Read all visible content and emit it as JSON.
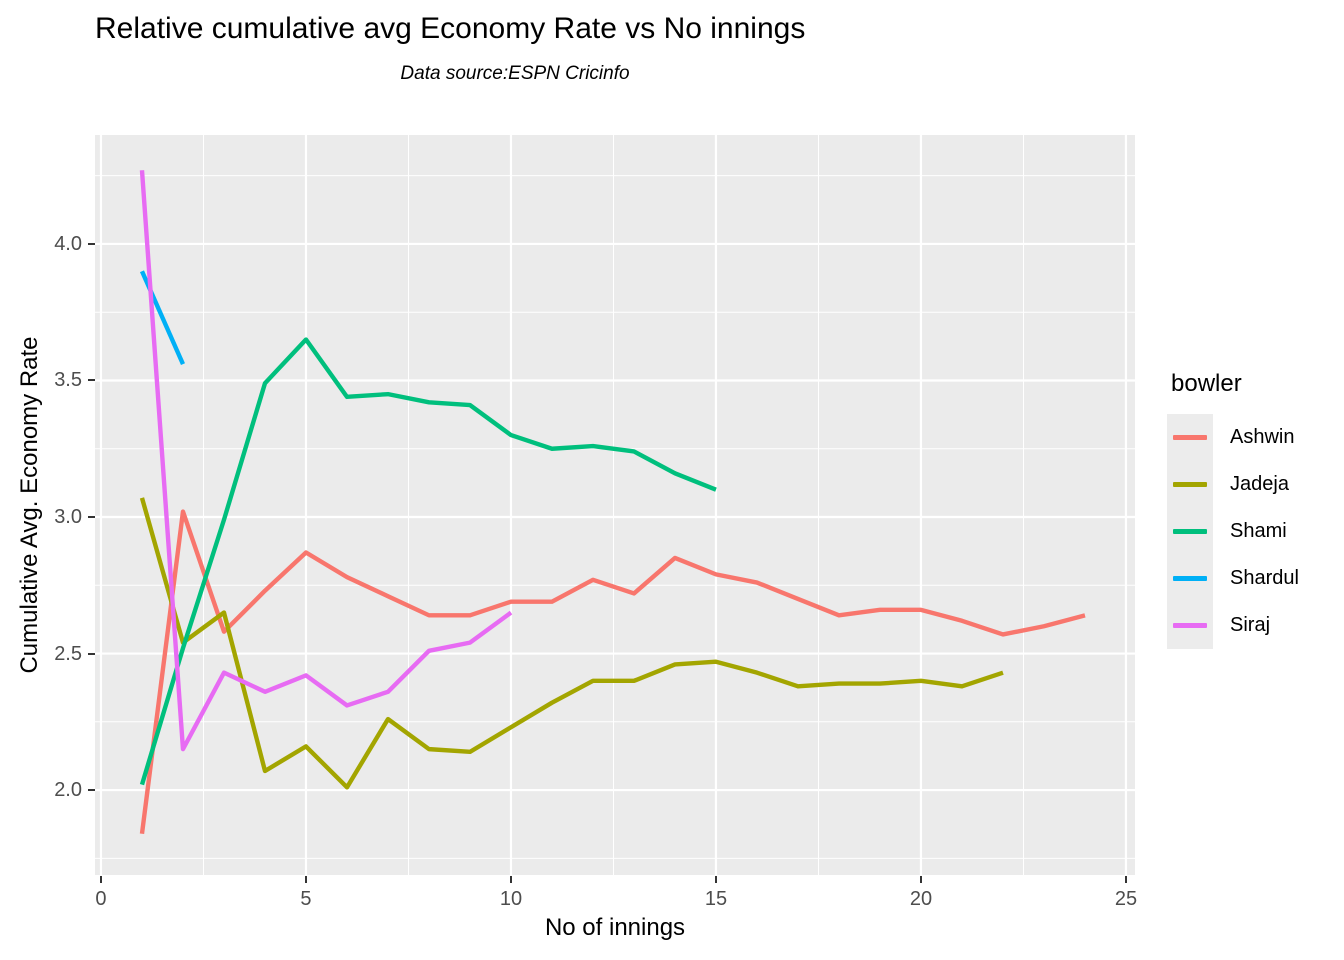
{
  "title": "Relative cumulative avg Economy Rate vs No innings",
  "subtitle": "Data source:ESPN Cricinfo",
  "chart_data": {
    "type": "line",
    "title": "Relative cumulative avg Economy Rate vs No innings",
    "subtitle": "Data source:ESPN Cricinfo",
    "xlabel": "No of innings",
    "ylabel": "Cumulative Avg. Economy Rate",
    "legend_title": "bowler",
    "legend_position": "right",
    "panel_background": "#EBEBEB",
    "gridline_color": "#FFFFFF",
    "tick_label_color": "#4D4D4D",
    "xlim": [
      -0.146,
      25.22
    ],
    "ylim": [
      1.689,
      4.399
    ],
    "x_ticks": [
      0,
      5,
      10,
      15,
      20,
      25
    ],
    "x_tick_labels": [
      "0",
      "5",
      "10",
      "15",
      "20",
      "25"
    ],
    "x_minor_ticks": [
      2.5,
      7.5,
      12.5,
      17.5,
      22.5
    ],
    "y_ticks": [
      2.0,
      2.5,
      3.0,
      3.5,
      4.0
    ],
    "y_tick_labels": [
      "2.0",
      "2.5",
      "3.0",
      "3.5",
      "4.0"
    ],
    "y_minor_ticks": [
      1.75,
      2.25,
      2.75,
      3.25,
      3.75,
      4.25
    ],
    "series": [
      {
        "name": "Ashwin",
        "color": "#F8766D",
        "x": [
          1,
          2,
          3,
          4,
          5,
          6,
          7,
          8,
          9,
          10,
          11,
          12,
          13,
          14,
          15,
          16,
          17,
          18,
          19,
          20,
          21,
          22,
          23,
          24
        ],
        "values": [
          1.84,
          3.02,
          2.58,
          2.73,
          2.87,
          2.78,
          2.71,
          2.64,
          2.64,
          2.69,
          2.69,
          2.77,
          2.72,
          2.85,
          2.79,
          2.76,
          2.7,
          2.64,
          2.66,
          2.66,
          2.62,
          2.57,
          2.6,
          2.64
        ]
      },
      {
        "name": "Jadeja",
        "color": "#A3A500",
        "x": [
          1,
          2,
          3,
          4,
          5,
          6,
          7,
          8,
          9,
          10,
          11,
          12,
          13,
          14,
          15,
          16,
          17,
          18,
          19,
          20,
          21,
          22
        ],
        "values": [
          3.07,
          2.54,
          2.65,
          2.07,
          2.16,
          2.01,
          2.26,
          2.15,
          2.14,
          2.23,
          2.32,
          2.4,
          2.4,
          2.46,
          2.47,
          2.43,
          2.38,
          2.39,
          2.39,
          2.4,
          2.38,
          2.43
        ]
      },
      {
        "name": "Shami",
        "color": "#00BF7D",
        "x": [
          1,
          2,
          3,
          4,
          5,
          6,
          7,
          8,
          9,
          10,
          11,
          12,
          13,
          14,
          15
        ],
        "values": [
          2.02,
          2.52,
          2.99,
          3.49,
          3.65,
          3.44,
          3.45,
          3.42,
          3.41,
          3.3,
          3.25,
          3.26,
          3.24,
          3.16,
          3.1
        ]
      },
      {
        "name": "Shardul",
        "color": "#00B0F6",
        "x": [
          1,
          2
        ],
        "values": [
          3.9,
          3.56
        ]
      },
      {
        "name": "Siraj",
        "color": "#E76BF3",
        "x": [
          1,
          2,
          3,
          4,
          5,
          6,
          7,
          8,
          9,
          10
        ],
        "values": [
          4.27,
          2.15,
          2.43,
          2.36,
          2.42,
          2.31,
          2.36,
          2.51,
          2.54,
          2.65
        ]
      }
    ]
  }
}
